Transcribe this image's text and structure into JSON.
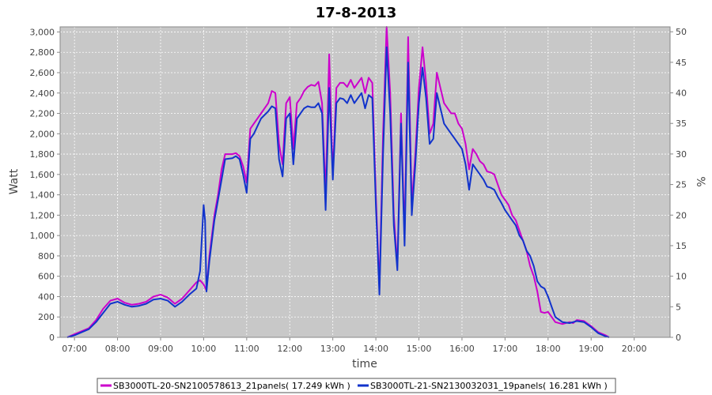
{
  "chart_data": {
    "type": "line",
    "title": "17-8-2013",
    "xlabel": "time",
    "ylabel": "Watt",
    "ylabel_right": "%",
    "x_ticks": [
      "07:00",
      "08:00",
      "09:00",
      "10:00",
      "11:00",
      "12:00",
      "13:00",
      "14:00",
      "15:00",
      "16:00",
      "17:00",
      "18:00",
      "19:00",
      "20:00"
    ],
    "xlim": [
      "06:40",
      "20:50"
    ],
    "ylim": [
      0,
      3050
    ],
    "y_ticks": [
      "0",
      "200",
      "400",
      "600",
      "800",
      "1,000",
      "1,200",
      "1,400",
      "1,600",
      "1,800",
      "2,000",
      "2,200",
      "2,400",
      "2,600",
      "2,800",
      "3,000"
    ],
    "ylim_right": [
      0,
      50.8
    ],
    "y_ticks_right": [
      "0",
      "5",
      "10",
      "15",
      "20",
      "25",
      "30",
      "35",
      "40",
      "45",
      "50"
    ],
    "grid": true,
    "legend_position": "bottom",
    "series": [
      {
        "name": "SB3000TL-20-SN2100578613_21panels( 17.249 kWh )",
        "color": "#cc00cc",
        "points": [
          [
            "06:50",
            0
          ],
          [
            "07:00",
            30
          ],
          [
            "07:10",
            60
          ],
          [
            "07:20",
            90
          ],
          [
            "07:30",
            170
          ],
          [
            "07:40",
            280
          ],
          [
            "07:50",
            360
          ],
          [
            "08:00",
            380
          ],
          [
            "08:10",
            340
          ],
          [
            "08:20",
            320
          ],
          [
            "08:30",
            330
          ],
          [
            "08:40",
            350
          ],
          [
            "08:50",
            400
          ],
          [
            "09:00",
            420
          ],
          [
            "09:10",
            390
          ],
          [
            "09:20",
            330
          ],
          [
            "09:30",
            380
          ],
          [
            "09:40",
            460
          ],
          [
            "09:50",
            540
          ],
          [
            "09:55",
            560
          ],
          [
            "10:00",
            520
          ],
          [
            "10:04",
            460
          ],
          [
            "10:08",
            800
          ],
          [
            "10:15",
            1200
          ],
          [
            "10:20",
            1400
          ],
          [
            "10:25",
            1650
          ],
          [
            "10:30",
            1800
          ],
          [
            "10:40",
            1800
          ],
          [
            "10:45",
            1810
          ],
          [
            "10:50",
            1780
          ],
          [
            "10:55",
            1680
          ],
          [
            "11:00",
            1520
          ],
          [
            "11:05",
            2050
          ],
          [
            "11:10",
            2100
          ],
          [
            "11:20",
            2200
          ],
          [
            "11:30",
            2300
          ],
          [
            "11:35",
            2420
          ],
          [
            "11:40",
            2400
          ],
          [
            "11:45",
            1900
          ],
          [
            "11:50",
            1700
          ],
          [
            "11:55",
            2300
          ],
          [
            "12:00",
            2360
          ],
          [
            "12:05",
            1850
          ],
          [
            "12:10",
            2300
          ],
          [
            "12:15",
            2350
          ],
          [
            "12:20",
            2420
          ],
          [
            "12:25",
            2460
          ],
          [
            "12:30",
            2480
          ],
          [
            "12:35",
            2470
          ],
          [
            "12:40",
            2510
          ],
          [
            "12:45",
            2300
          ],
          [
            "12:50",
            1400
          ],
          [
            "12:55",
            2780
          ],
          [
            "13:00",
            1600
          ],
          [
            "13:05",
            2450
          ],
          [
            "13:10",
            2500
          ],
          [
            "13:15",
            2500
          ],
          [
            "13:20",
            2460
          ],
          [
            "13:25",
            2530
          ],
          [
            "13:30",
            2450
          ],
          [
            "13:35",
            2500
          ],
          [
            "13:40",
            2550
          ],
          [
            "13:45",
            2400
          ],
          [
            "13:50",
            2550
          ],
          [
            "13:55",
            2500
          ],
          [
            "14:00",
            1400
          ],
          [
            "14:05",
            480
          ],
          [
            "14:10",
            2000
          ],
          [
            "14:15",
            3050
          ],
          [
            "14:20",
            2400
          ],
          [
            "14:25",
            1200
          ],
          [
            "14:30",
            700
          ],
          [
            "14:35",
            2200
          ],
          [
            "14:40",
            1000
          ],
          [
            "14:45",
            2950
          ],
          [
            "14:50",
            1300
          ],
          [
            "14:55",
            1800
          ],
          [
            "15:00",
            2450
          ],
          [
            "15:05",
            2850
          ],
          [
            "15:10",
            2500
          ],
          [
            "15:15",
            2000
          ],
          [
            "15:20",
            2100
          ],
          [
            "15:25",
            2600
          ],
          [
            "15:30",
            2450
          ],
          [
            "15:35",
            2300
          ],
          [
            "15:40",
            2250
          ],
          [
            "15:45",
            2200
          ],
          [
            "15:50",
            2200
          ],
          [
            "15:55",
            2100
          ],
          [
            "16:00",
            2050
          ],
          [
            "16:05",
            1900
          ],
          [
            "16:10",
            1650
          ],
          [
            "16:15",
            1850
          ],
          [
            "16:20",
            1800
          ],
          [
            "16:25",
            1730
          ],
          [
            "16:30",
            1700
          ],
          [
            "16:35",
            1630
          ],
          [
            "16:40",
            1620
          ],
          [
            "16:45",
            1600
          ],
          [
            "16:50",
            1500
          ],
          [
            "16:55",
            1400
          ],
          [
            "17:00",
            1350
          ],
          [
            "17:05",
            1300
          ],
          [
            "17:10",
            1200
          ],
          [
            "17:15",
            1150
          ],
          [
            "17:20",
            1050
          ],
          [
            "17:25",
            950
          ],
          [
            "17:30",
            850
          ],
          [
            "17:35",
            700
          ],
          [
            "17:40",
            600
          ],
          [
            "17:45",
            450
          ],
          [
            "17:50",
            250
          ],
          [
            "17:55",
            240
          ],
          [
            "18:00",
            250
          ],
          [
            "18:05",
            200
          ],
          [
            "18:10",
            150
          ],
          [
            "18:20",
            130
          ],
          [
            "18:30",
            150
          ],
          [
            "18:35",
            140
          ],
          [
            "18:40",
            170
          ],
          [
            "18:50",
            160
          ],
          [
            "19:00",
            110
          ],
          [
            "19:10",
            50
          ],
          [
            "19:20",
            20
          ],
          [
            "19:25",
            0
          ]
        ]
      },
      {
        "name": "SB3000TL-21-SN2130032031_19panels( 16.281 kWh )",
        "color": "#1133cc",
        "points": [
          [
            "06:50",
            0
          ],
          [
            "07:00",
            20
          ],
          [
            "07:10",
            50
          ],
          [
            "07:20",
            80
          ],
          [
            "07:30",
            150
          ],
          [
            "07:40",
            240
          ],
          [
            "07:50",
            330
          ],
          [
            "08:00",
            350
          ],
          [
            "08:10",
            320
          ],
          [
            "08:20",
            300
          ],
          [
            "08:30",
            310
          ],
          [
            "08:40",
            330
          ],
          [
            "08:50",
            370
          ],
          [
            "09:00",
            380
          ],
          [
            "09:10",
            360
          ],
          [
            "09:20",
            300
          ],
          [
            "09:30",
            350
          ],
          [
            "09:40",
            420
          ],
          [
            "09:50",
            480
          ],
          [
            "09:55",
            650
          ],
          [
            "10:00",
            1300
          ],
          [
            "10:02",
            1150
          ],
          [
            "10:04",
            450
          ],
          [
            "10:08",
            750
          ],
          [
            "10:15",
            1150
          ],
          [
            "10:20",
            1350
          ],
          [
            "10:25",
            1550
          ],
          [
            "10:30",
            1750
          ],
          [
            "10:40",
            1760
          ],
          [
            "10:45",
            1780
          ],
          [
            "10:50",
            1750
          ],
          [
            "10:55",
            1600
          ],
          [
            "11:00",
            1420
          ],
          [
            "11:05",
            1950
          ],
          [
            "11:10",
            2000
          ],
          [
            "11:20",
            2150
          ],
          [
            "11:30",
            2220
          ],
          [
            "11:35",
            2270
          ],
          [
            "11:40",
            2250
          ],
          [
            "11:45",
            1750
          ],
          [
            "11:50",
            1580
          ],
          [
            "11:55",
            2150
          ],
          [
            "12:00",
            2200
          ],
          [
            "12:05",
            1700
          ],
          [
            "12:10",
            2150
          ],
          [
            "12:15",
            2200
          ],
          [
            "12:20",
            2250
          ],
          [
            "12:25",
            2270
          ],
          [
            "12:30",
            2260
          ],
          [
            "12:35",
            2260
          ],
          [
            "12:40",
            2300
          ],
          [
            "12:45",
            2200
          ],
          [
            "12:50",
            1250
          ],
          [
            "12:55",
            2450
          ],
          [
            "13:00",
            1550
          ],
          [
            "13:05",
            2300
          ],
          [
            "13:10",
            2350
          ],
          [
            "13:15",
            2340
          ],
          [
            "13:20",
            2300
          ],
          [
            "13:25",
            2380
          ],
          [
            "13:30",
            2300
          ],
          [
            "13:35",
            2350
          ],
          [
            "13:40",
            2400
          ],
          [
            "13:45",
            2250
          ],
          [
            "13:50",
            2380
          ],
          [
            "13:55",
            2350
          ],
          [
            "14:00",
            1300
          ],
          [
            "14:05",
            420
          ],
          [
            "14:10",
            1800
          ],
          [
            "14:15",
            2850
          ],
          [
            "14:20",
            2200
          ],
          [
            "14:25",
            1100
          ],
          [
            "14:30",
            660
          ],
          [
            "14:35",
            2100
          ],
          [
            "14:40",
            900
          ],
          [
            "14:45",
            2700
          ],
          [
            "14:50",
            1200
          ],
          [
            "14:55",
            1700
          ],
          [
            "15:00",
            2300
          ],
          [
            "15:05",
            2650
          ],
          [
            "15:10",
            2350
          ],
          [
            "15:15",
            1900
          ],
          [
            "15:20",
            1950
          ],
          [
            "15:25",
            2400
          ],
          [
            "15:30",
            2250
          ],
          [
            "15:35",
            2100
          ],
          [
            "15:40",
            2050
          ],
          [
            "15:45",
            2000
          ],
          [
            "15:50",
            1950
          ],
          [
            "15:55",
            1900
          ],
          [
            "16:00",
            1850
          ],
          [
            "16:05",
            1700
          ],
          [
            "16:10",
            1450
          ],
          [
            "16:15",
            1700
          ],
          [
            "16:20",
            1650
          ],
          [
            "16:25",
            1600
          ],
          [
            "16:30",
            1550
          ],
          [
            "16:35",
            1480
          ],
          [
            "16:40",
            1470
          ],
          [
            "16:45",
            1450
          ],
          [
            "16:50",
            1380
          ],
          [
            "16:55",
            1320
          ],
          [
            "17:00",
            1250
          ],
          [
            "17:05",
            1200
          ],
          [
            "17:10",
            1150
          ],
          [
            "17:15",
            1100
          ],
          [
            "17:20",
            1000
          ],
          [
            "17:25",
            950
          ],
          [
            "17:30",
            850
          ],
          [
            "17:35",
            800
          ],
          [
            "17:40",
            700
          ],
          [
            "17:45",
            550
          ],
          [
            "17:50",
            500
          ],
          [
            "17:55",
            480
          ],
          [
            "18:00",
            400
          ],
          [
            "18:05",
            300
          ],
          [
            "18:10",
            200
          ],
          [
            "18:20",
            150
          ],
          [
            "18:30",
            140
          ],
          [
            "18:35",
            150
          ],
          [
            "18:40",
            160
          ],
          [
            "18:50",
            150
          ],
          [
            "19:00",
            100
          ],
          [
            "19:10",
            40
          ],
          [
            "19:20",
            10
          ],
          [
            "19:25",
            0
          ]
        ]
      }
    ]
  }
}
